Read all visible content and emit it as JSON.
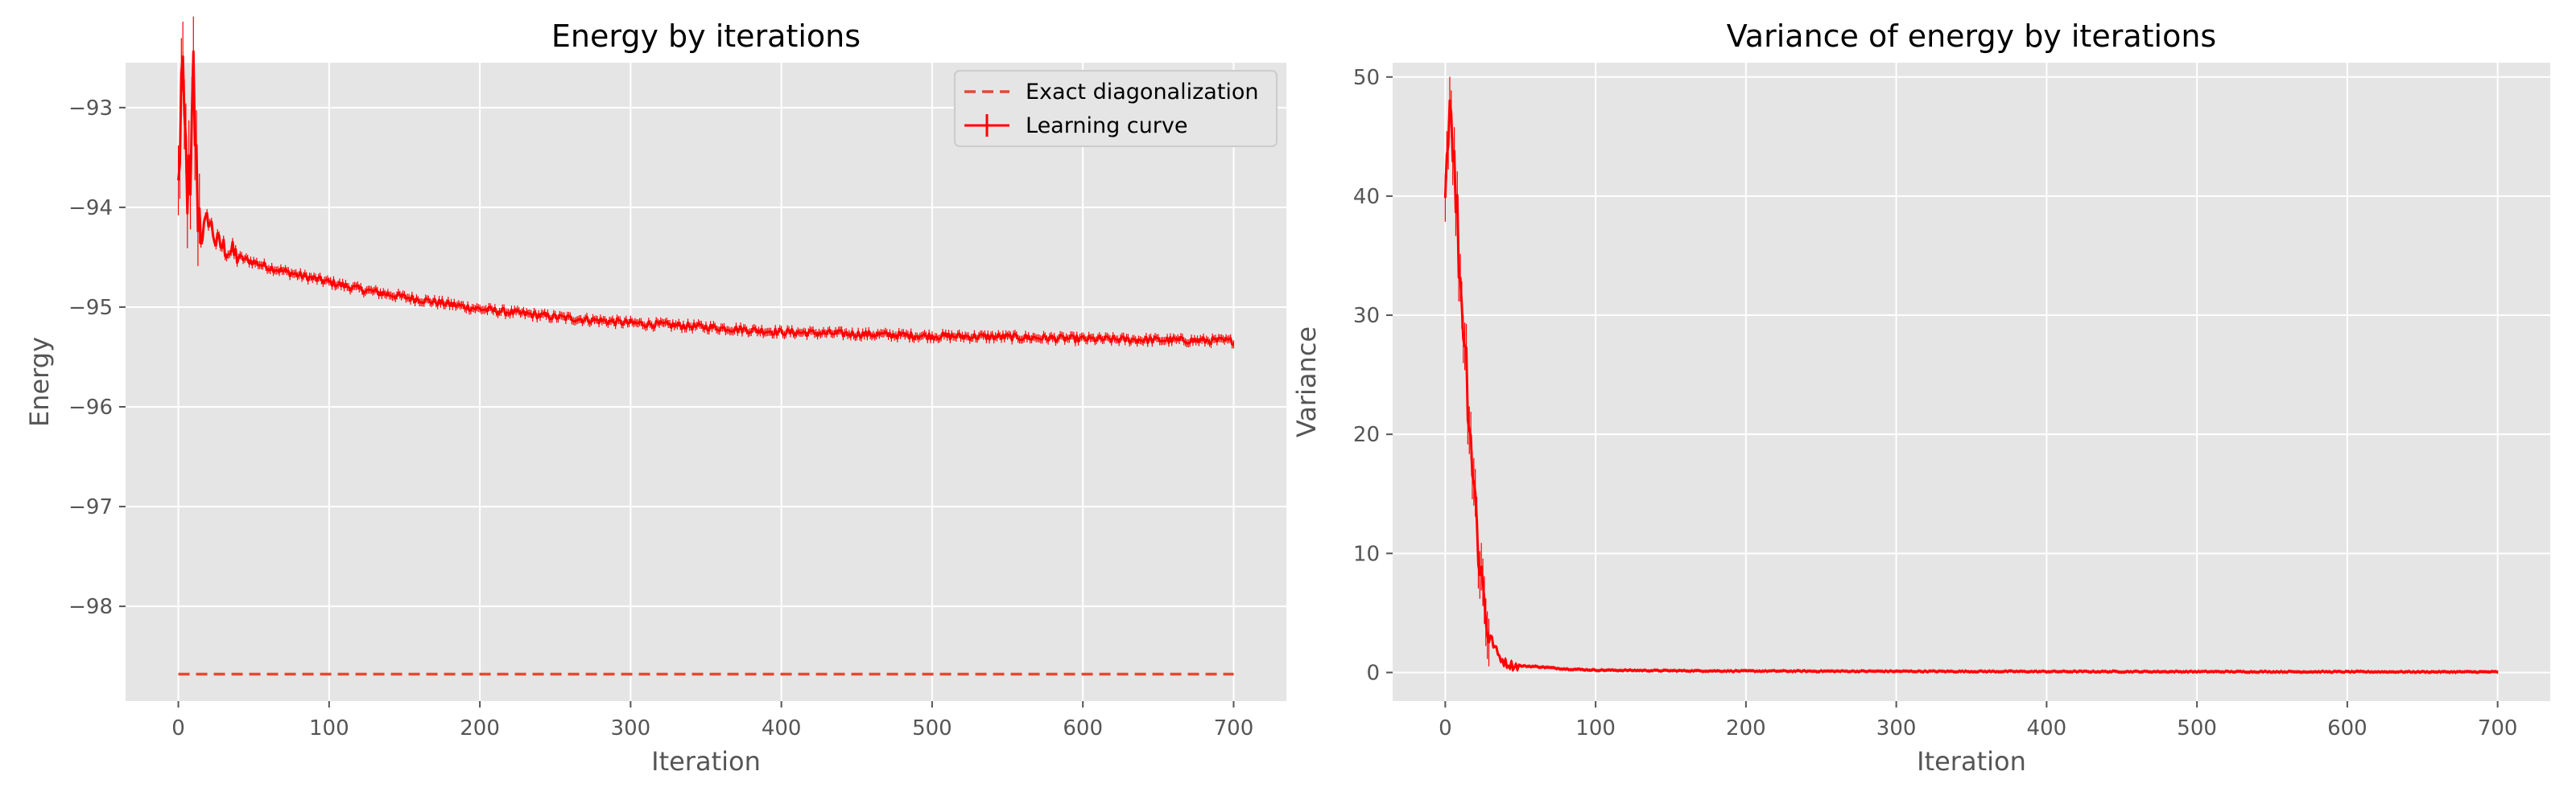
{
  "colors": {
    "plot_bg": "#e5e5e5",
    "grid": "#ffffff",
    "line": "#ff0000",
    "exact": "#e24a33",
    "text": "#555555"
  },
  "chart_data": [
    {
      "type": "line",
      "title": "Energy by iterations",
      "xlabel": "Iteration",
      "ylabel": "Energy",
      "xlim": [
        -35,
        735
      ],
      "ylim": [
        -98.95,
        -92.55
      ],
      "xticks": [
        0,
        100,
        200,
        300,
        400,
        500,
        600,
        700
      ],
      "yticks": [
        -98,
        -97,
        -96,
        -95,
        -94,
        -93
      ],
      "xtick_labels": [
        "0",
        "100",
        "200",
        "300",
        "400",
        "500",
        "600",
        "700"
      ],
      "ytick_labels": [
        "−98",
        "−97",
        "−96",
        "−95",
        "−94",
        "−93"
      ],
      "grid": true,
      "legend": {
        "position": "top-right",
        "entries": [
          "Exact diagonalization",
          "Learning curve"
        ]
      },
      "series": [
        {
          "name": "Exact diagonalization",
          "style": "dashed",
          "x": [
            0,
            700
          ],
          "y": [
            -98.68,
            -98.68
          ]
        },
        {
          "name": "Learning curve",
          "style": "solid-errorbar",
          "x": [
            0,
            2,
            5,
            8,
            10,
            12,
            15,
            20,
            25,
            30,
            40,
            50,
            60,
            80,
            100,
            120,
            150,
            200,
            250,
            300,
            350,
            400,
            450,
            500,
            550,
            600,
            650,
            700
          ],
          "y": [
            -93.9,
            -92.8,
            -93.5,
            -94.1,
            -92.7,
            -93.7,
            -94.3,
            -94.1,
            -94.35,
            -94.4,
            -94.5,
            -94.55,
            -94.6,
            -94.68,
            -94.75,
            -94.82,
            -94.9,
            -95.02,
            -95.1,
            -95.16,
            -95.2,
            -95.25,
            -95.27,
            -95.29,
            -95.3,
            -95.32,
            -95.33,
            -95.34
          ]
        }
      ]
    },
    {
      "type": "line",
      "title": "Variance of energy by iterations",
      "xlabel": "Iteration",
      "ylabel": "Variance",
      "xlim": [
        -35,
        735
      ],
      "ylim": [
        -2.4,
        51.2
      ],
      "xticks": [
        0,
        100,
        200,
        300,
        400,
        500,
        600,
        700
      ],
      "yticks": [
        0,
        10,
        20,
        30,
        40,
        50
      ],
      "xtick_labels": [
        "0",
        "100",
        "200",
        "300",
        "400",
        "500",
        "600",
        "700"
      ],
      "ytick_labels": [
        "0",
        "10",
        "20",
        "30",
        "40",
        "50"
      ],
      "grid": true,
      "series": [
        {
          "style": "solid-errorbar",
          "x": [
            0,
            2,
            4,
            6,
            8,
            10,
            12,
            14,
            16,
            18,
            20,
            22,
            25,
            28,
            30,
            35,
            40,
            45,
            50,
            60,
            70,
            80,
            100,
            150,
            200,
            300,
            400,
            500,
            600,
            700
          ],
          "y": [
            40,
            47,
            48.5,
            42,
            38,
            33,
            30,
            26,
            22,
            18,
            14,
            11,
            7,
            4.5,
            3,
            1.5,
            0.8,
            0.6,
            0.55,
            0.5,
            0.4,
            0.3,
            0.2,
            0.15,
            0.12,
            0.1,
            0.08,
            0.07,
            0.06,
            0.05
          ]
        }
      ]
    }
  ]
}
